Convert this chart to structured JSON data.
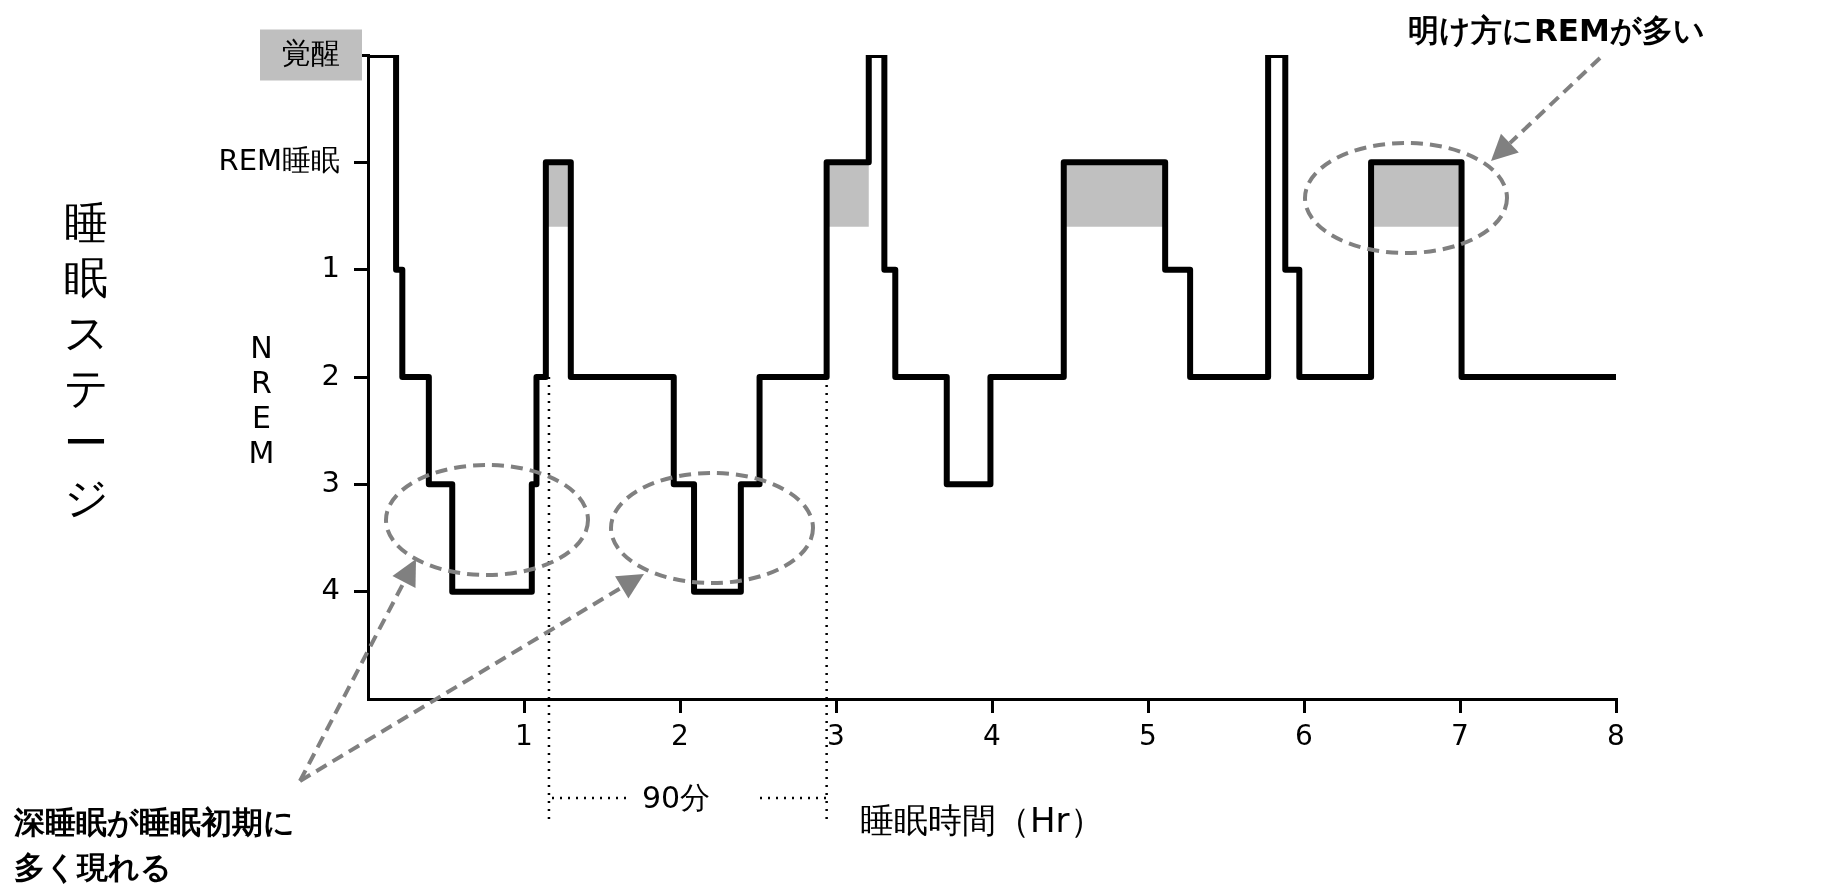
{
  "chart_data": {
    "type": "step",
    "xlabel": "睡眠時間（Hr）",
    "ylabel": "睡眠ステージ",
    "x": [
      0,
      0.18,
      0.22,
      0.39,
      0.54,
      1.05,
      1.08,
      1.14,
      1.3,
      1.96,
      2.09,
      2.39,
      2.51,
      2.94,
      3.21,
      3.31,
      3.38,
      3.71,
      3.99,
      4.46,
      5.11,
      5.27,
      5.77,
      5.88,
      5.97,
      6.43,
      7.01,
      8
    ],
    "series": [
      {
        "color": "#000000",
        "values": [
          -1,
          1,
          2,
          3,
          4,
          3,
          2,
          0,
          2,
          3,
          4,
          3,
          2,
          0,
          -1,
          1,
          2,
          3,
          2,
          0,
          1,
          2,
          -1,
          1,
          2,
          0,
          2,
          2
        ]
      }
    ],
    "xlim": [
      0,
      8
    ],
    "xticks": [
      1,
      2,
      3,
      4,
      5,
      6,
      7,
      8
    ],
    "ylim": [
      5,
      -1
    ],
    "yticks": [
      {
        "value": -1,
        "label": "覚醒"
      },
      {
        "value": 0,
        "label": "REM睡眠"
      },
      1,
      2,
      3,
      4
    ],
    "grid": false,
    "legend": false,
    "marker": "none",
    "line_style": "solid",
    "bands": [
      {
        "axis": "x",
        "from": 1.14,
        "to": 1.3,
        "color": "#c0c0c0"
      },
      {
        "axis": "x",
        "from": 2.94,
        "to": 3.21,
        "color": "#c0c0c0"
      },
      {
        "axis": "x",
        "from": 4.46,
        "to": 5.11,
        "color": "#c0c0c0"
      },
      {
        "axis": "x",
        "from": 6.43,
        "to": 7.01,
        "color": "#c0c0c0"
      }
    ],
    "ref_lines": [
      {
        "axis": "x",
        "value": 1.16,
        "line_style": "dotted",
        "color": "#000000"
      },
      {
        "axis": "x",
        "value": 2.94,
        "line_style": "dotted",
        "color": "#000000"
      }
    ],
    "annotations": [
      "深睡眠が睡眠初期に多く現れる",
      "明け方にREMが多い",
      "NREM",
      "90分"
    ]
  }
}
